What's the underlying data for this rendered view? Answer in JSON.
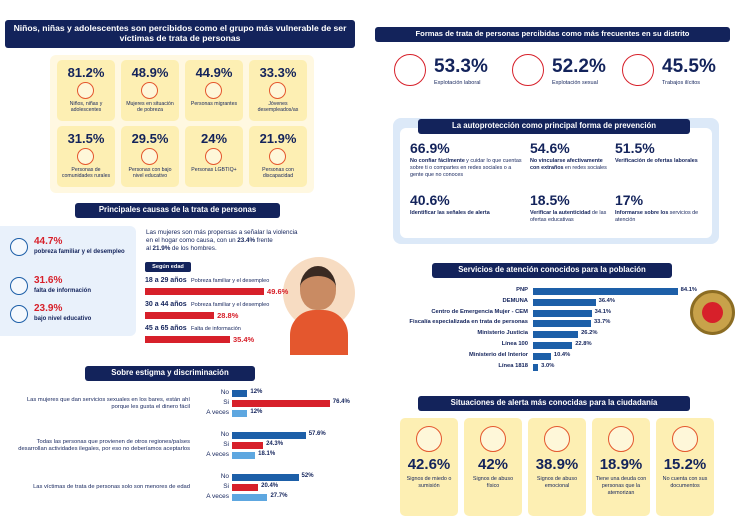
{
  "vulnerable": {
    "title": "Niños, niñas y adolescentes son percibidos como el grupo más vulnerable de ser víctimas de trata de personas",
    "items": [
      {
        "value": "81.2%",
        "label": "Niños, niñas y adolescentes"
      },
      {
        "value": "48.9%",
        "label": "Mujeres en situación de pobreza"
      },
      {
        "value": "44.9%",
        "label": "Personas migrantes"
      },
      {
        "value": "33.3%",
        "label": "Jóvenes desempleados/as"
      },
      {
        "value": "31.5%",
        "label": "Personas de comunidades rurales"
      },
      {
        "value": "29.5%",
        "label": "Personas con bajo nivel educativo"
      },
      {
        "value": "24%",
        "label": "Personas LGBTIQ+"
      },
      {
        "value": "21.9%",
        "label": "Personas con discapacidad"
      }
    ]
  },
  "forms": {
    "title": "Formas de trata de personas percibidas como más frecuentes en su distrito",
    "items": [
      {
        "value": "53.3%",
        "label": "Explotación laboral"
      },
      {
        "value": "52.2%",
        "label": "Explotación sexual"
      },
      {
        "value": "45.5%",
        "label": "Trabajos ilícitos"
      }
    ]
  },
  "selfprotection": {
    "title": "La autoprotección como principal forma de prevención",
    "items": [
      {
        "value": "66.9%",
        "bold": "No confiar fácilmente",
        "text": "y cuidar lo que cuentas sobre ti o compartes en redes sociales o a gente que no conoces"
      },
      {
        "value": "54.6%",
        "bold": "No vincularse afectivamente con extraños",
        "text": "en redes sociales"
      },
      {
        "value": "51.5%",
        "bold": "Verificación de ofertas laborales"
      },
      {
        "value": "40.6%",
        "bold": "Identificar las señales de alerta"
      },
      {
        "value": "18.5%",
        "bold": "Verificar la autenticidad",
        "text": "de las ofertas educativas"
      },
      {
        "value": "17%",
        "bold": "Informarse sobre los",
        "text": "servicios de atención"
      }
    ]
  },
  "causes": {
    "title": "Principales causas de la trata de personas",
    "items": [
      {
        "value": "44.7%",
        "label": "pobreza familiar y el desempleo"
      },
      {
        "value": "31.6%",
        "label": "falta de información"
      },
      {
        "value": "23.9%",
        "label": "bajo nivel educativo"
      }
    ],
    "note": [
      "Las mujeres son más propensas a señalar la violencia en el hogar como causa, con un",
      "23.4%",
      "frente al",
      "21.9%",
      "de los hombres."
    ],
    "age_tag": "Según edad"
  },
  "alerts": {
    "title": "Situaciones de alerta más conocidas para la ciudadanía",
    "items": [
      {
        "value": "42.6%",
        "label": "Signos de miedo o sumisión"
      },
      {
        "value": "42%",
        "label": "Signos de abuso físico"
      },
      {
        "value": "38.9%",
        "label": "Signos de abuso emocional"
      },
      {
        "value": "18.9%",
        "label": "Tiene una deuda con personas que la atemorizan"
      },
      {
        "value": "15.2%",
        "label": "No cuenta con sus documentos"
      }
    ]
  },
  "chart_data": [
    {
      "type": "bar",
      "categories": [
        "18 a 29 años",
        "30 a 44 años",
        "45 a 65 años"
      ],
      "causes": [
        "Pobreza familiar y el desempleo",
        "Pobreza familiar y el desempleo",
        "Falta de información"
      ],
      "values": [
        49.6,
        28.8,
        35.4
      ],
      "value_labels": [
        "49.6%",
        "28.8%",
        "35.4%"
      ],
      "color": "#d7202a"
    },
    {
      "type": "bar",
      "title": "Sobre estigma y discriminación",
      "categories": [
        "Las mujeres que dan servicios sexuales en los bares, están ahí porque les gusta el dinero fácil",
        "Todas las personas que provienen de otros regiones/países desarrollan actividades ilegales, por eso no deberíamos aceptarlos",
        "Las víctimas de trata de personas solo son menores de edad"
      ],
      "series": [
        {
          "name": "No",
          "color": "#1d5fa8",
          "values": [
            12,
            57.6,
            52
          ],
          "value_labels": [
            "12%",
            "57.6%",
            "52%"
          ]
        },
        {
          "name": "Si",
          "color": "#d7202a",
          "values": [
            76.4,
            24.3,
            20.4
          ],
          "value_labels": [
            "76.4%",
            "24.3%",
            "20.4%"
          ]
        },
        {
          "name": "A veces",
          "color": "#5ea7e0",
          "values": [
            12,
            18.1,
            27.7
          ],
          "value_labels": [
            "12%",
            "18.1%",
            "27.7%"
          ]
        }
      ]
    },
    {
      "type": "bar",
      "title": "Servicios de atención conocidos para la población",
      "categories": [
        "PNP",
        "DEMUNA",
        "Centro de Emergencia Mujer - CEM",
        "Fiscalía especializada en trata de personas",
        "Ministerio Justicia",
        "Línea 100",
        "Ministerio del Interior",
        "Línea 1818"
      ],
      "values": [
        84.1,
        36.4,
        34.1,
        33.7,
        26.2,
        22.8,
        10.4,
        3.0
      ],
      "value_labels": [
        "84.1%",
        "36.4%",
        "34.1%",
        "33.7%",
        "26.2%",
        "22.8%",
        "10.4%",
        "3.0%"
      ],
      "color": "#1d5fa8"
    }
  ]
}
